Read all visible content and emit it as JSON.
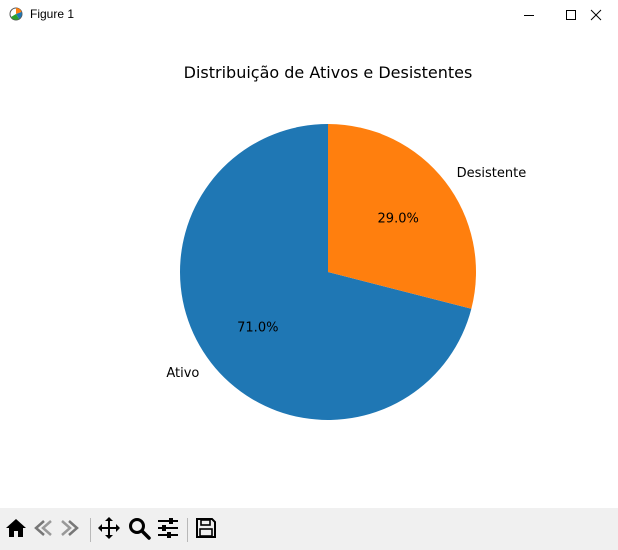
{
  "window": {
    "title": "Figure 1",
    "icon": "matplotlib-figure-icon",
    "controls": [
      "minimize-icon",
      "maximize-icon",
      "close-icon"
    ]
  },
  "chart_data": {
    "type": "pie",
    "title": "Distribuição de Ativos e Desistentes",
    "labels": [
      "Ativo",
      "Desistente"
    ],
    "values": [
      71.0,
      29.0
    ],
    "autopct_labels": [
      "71.0%",
      "29.0%"
    ],
    "colors": [
      "#1f77b4",
      "#ff7f0e"
    ],
    "start_angle_deg": 90,
    "counterclockwise": true
  },
  "toolbar": {
    "buttons": [
      "home-icon",
      "back-icon",
      "forward-icon",
      "pan-icon",
      "zoom-icon",
      "configure-subplots-icon",
      "save-icon"
    ]
  }
}
